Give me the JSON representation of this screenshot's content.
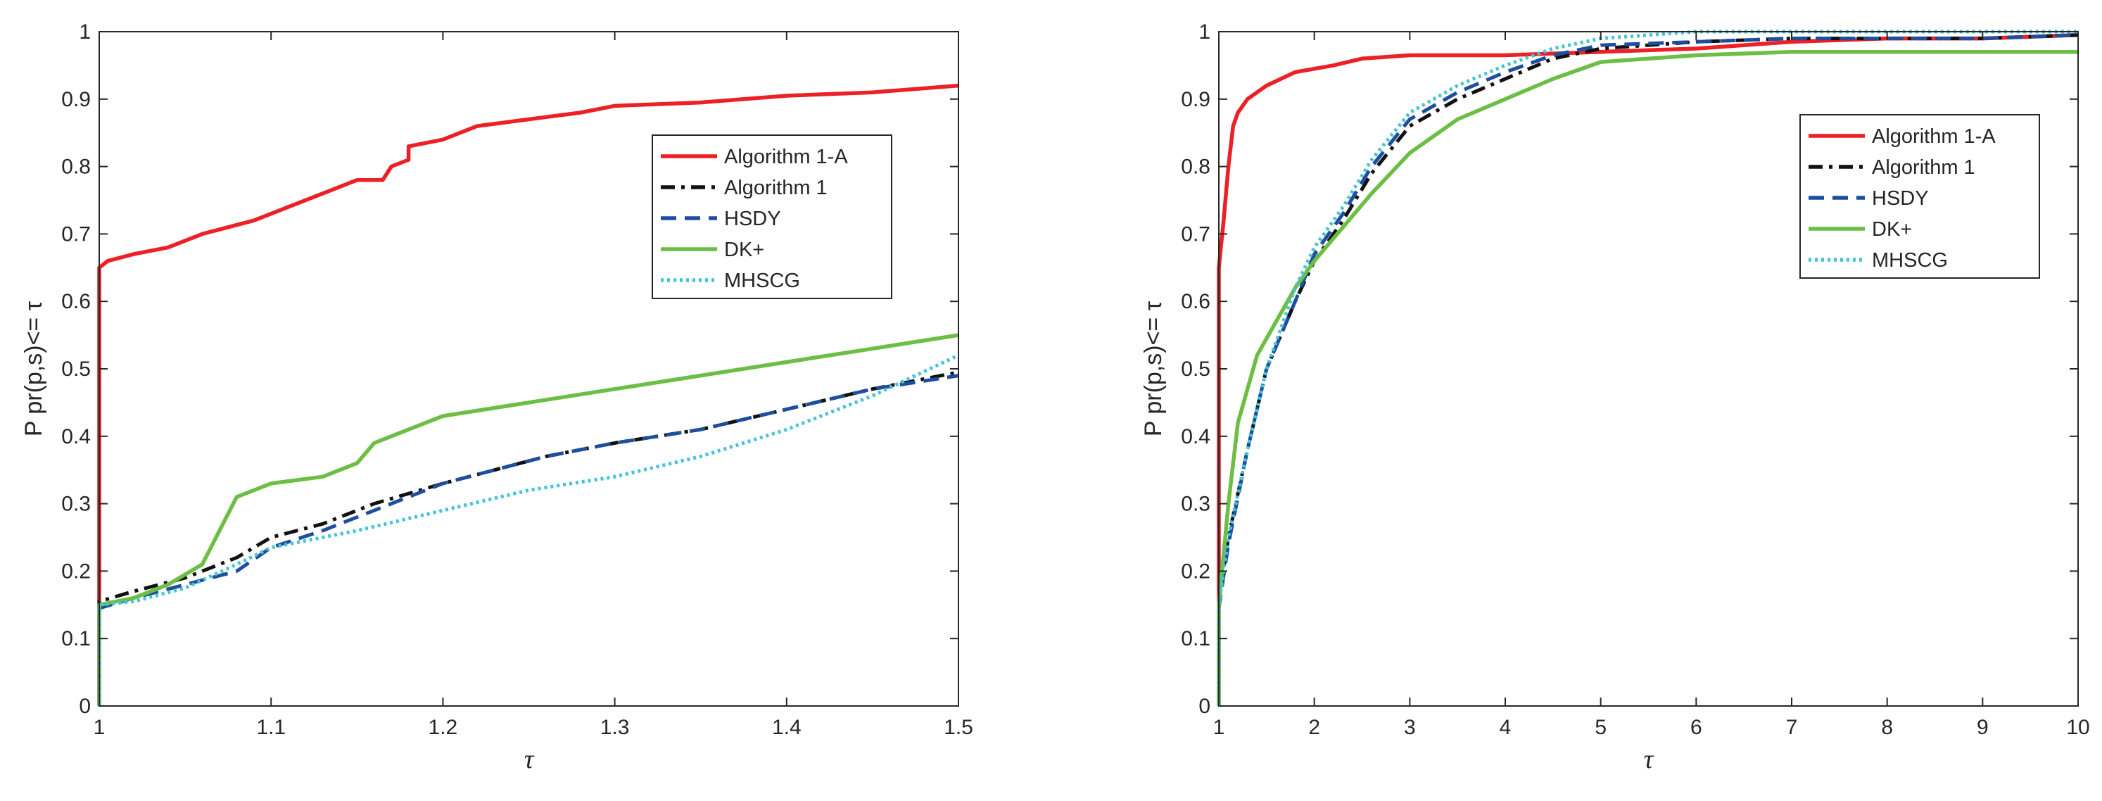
{
  "colors": {
    "algorithm_1a": "#ec2026",
    "algorithm_1": "#111111",
    "hsdy": "#1d4f9e",
    "dk_plus": "#6cbe45",
    "mhscg": "#45c3d9",
    "axis": "#262626"
  },
  "chart_data": [
    {
      "type": "line",
      "title": "",
      "xlabel": "τ",
      "ylabel": "P pr(p,s)<= τ",
      "xlim": [
        1,
        1.5
      ],
      "ylim": [
        0,
        1
      ],
      "xticks": [
        1,
        1.1,
        1.2,
        1.3,
        1.4,
        1.5
      ],
      "xtick_labels": [
        "1",
        "1.1",
        "1.2",
        "1.3",
        "1.4",
        "1.5"
      ],
      "yticks": [
        0,
        0.1,
        0.2,
        0.3,
        0.4,
        0.5,
        0.6,
        0.7,
        0.8,
        0.9,
        1
      ],
      "ytick_labels": [
        "0",
        "0.1",
        "0.2",
        "0.3",
        "0.4",
        "0.5",
        "0.6",
        "0.7",
        "0.8",
        "0.9",
        "1"
      ],
      "legend_position": "upper-middle-right",
      "series": [
        {
          "name": "Algorithm 1-A",
          "key": "algorithm_1a",
          "style": "solid",
          "x": [
            1,
            1,
            1.005,
            1.02,
            1.04,
            1.06,
            1.075,
            1.09,
            1.11,
            1.13,
            1.15,
            1.165,
            1.17,
            1.18,
            1.18,
            1.2,
            1.22,
            1.25,
            1.28,
            1.3,
            1.35,
            1.4,
            1.45,
            1.5
          ],
          "y": [
            0,
            0.65,
            0.66,
            0.67,
            0.68,
            0.7,
            0.71,
            0.72,
            0.74,
            0.76,
            0.78,
            0.78,
            0.8,
            0.81,
            0.83,
            0.84,
            0.86,
            0.87,
            0.88,
            0.89,
            0.895,
            0.905,
            0.91,
            0.92
          ]
        },
        {
          "name": "Algorithm 1",
          "key": "algorithm_1",
          "style": "dashdot",
          "x": [
            1,
            1,
            1.02,
            1.05,
            1.08,
            1.1,
            1.13,
            1.16,
            1.2,
            1.23,
            1.26,
            1.3,
            1.35,
            1.4,
            1.45,
            1.5
          ],
          "y": [
            0,
            0.155,
            0.17,
            0.19,
            0.22,
            0.25,
            0.27,
            0.3,
            0.33,
            0.35,
            0.37,
            0.39,
            0.41,
            0.44,
            0.47,
            0.495
          ]
        },
        {
          "name": "HSDY",
          "key": "hsdy",
          "style": "dashed",
          "x": [
            1,
            1,
            1.02,
            1.05,
            1.08,
            1.1,
            1.13,
            1.16,
            1.2,
            1.23,
            1.26,
            1.3,
            1.35,
            1.4,
            1.45,
            1.5
          ],
          "y": [
            0,
            0.145,
            0.16,
            0.18,
            0.2,
            0.235,
            0.26,
            0.29,
            0.33,
            0.35,
            0.37,
            0.39,
            0.41,
            0.44,
            0.47,
            0.49
          ]
        },
        {
          "name": "DK+",
          "key": "dk_plus",
          "style": "solid",
          "x": [
            1,
            1,
            1.02,
            1.04,
            1.06,
            1.07,
            1.08,
            1.1,
            1.13,
            1.15,
            1.16,
            1.18,
            1.2,
            1.25,
            1.3,
            1.35,
            1.4,
            1.45,
            1.5
          ],
          "y": [
            0,
            0.15,
            0.16,
            0.18,
            0.21,
            0.26,
            0.31,
            0.33,
            0.34,
            0.36,
            0.39,
            0.41,
            0.43,
            0.45,
            0.47,
            0.49,
            0.51,
            0.53,
            0.55
          ]
        },
        {
          "name": "MHSCG",
          "key": "mhscg",
          "style": "dotted",
          "x": [
            1,
            1,
            1.02,
            1.05,
            1.08,
            1.1,
            1.15,
            1.2,
            1.25,
            1.3,
            1.35,
            1.4,
            1.45,
            1.5
          ],
          "y": [
            0,
            0.15,
            0.155,
            0.175,
            0.21,
            0.235,
            0.26,
            0.29,
            0.32,
            0.34,
            0.37,
            0.41,
            0.46,
            0.52
          ]
        }
      ]
    },
    {
      "type": "line",
      "title": "",
      "xlabel": "τ",
      "ylabel": "P pr(p,s)<= τ",
      "xlim": [
        1,
        10
      ],
      "ylim": [
        0,
        1
      ],
      "xticks": [
        1,
        2,
        3,
        4,
        5,
        6,
        7,
        8,
        9,
        10
      ],
      "xtick_labels": [
        "1",
        "2",
        "3",
        "4",
        "5",
        "6",
        "7",
        "8",
        "9",
        "10"
      ],
      "yticks": [
        0,
        0.1,
        0.2,
        0.3,
        0.4,
        0.5,
        0.6,
        0.7,
        0.8,
        0.9,
        1
      ],
      "ytick_labels": [
        "0",
        "0.1",
        "0.2",
        "0.3",
        "0.4",
        "0.5",
        "0.6",
        "0.7",
        "0.8",
        "0.9",
        "1"
      ],
      "legend_position": "upper-right",
      "series": [
        {
          "name": "Algorithm 1-A",
          "key": "algorithm_1a",
          "style": "solid",
          "x": [
            1,
            1,
            1.05,
            1.1,
            1.15,
            1.2,
            1.3,
            1.5,
            1.8,
            2.2,
            2.5,
            3,
            4,
            5,
            6,
            7,
            8,
            9,
            10
          ],
          "y": [
            0,
            0.65,
            0.72,
            0.8,
            0.86,
            0.88,
            0.9,
            0.92,
            0.94,
            0.95,
            0.96,
            0.965,
            0.965,
            0.97,
            0.975,
            0.985,
            0.99,
            0.99,
            0.995
          ]
        },
        {
          "name": "Algorithm 1",
          "key": "algorithm_1",
          "style": "dashdot",
          "x": [
            1,
            1,
            1.1,
            1.3,
            1.5,
            1.8,
            2,
            2.3,
            2.6,
            3,
            3.5,
            4,
            4.5,
            5,
            6,
            7,
            8,
            9,
            10
          ],
          "y": [
            0,
            0.155,
            0.25,
            0.38,
            0.5,
            0.6,
            0.66,
            0.72,
            0.79,
            0.86,
            0.9,
            0.93,
            0.96,
            0.975,
            0.985,
            0.99,
            0.99,
            0.99,
            0.995
          ]
        },
        {
          "name": "HSDY",
          "key": "hsdy",
          "style": "dashed",
          "x": [
            1,
            1,
            1.1,
            1.3,
            1.5,
            1.8,
            2,
            2.3,
            2.6,
            3,
            3.5,
            4,
            4.5,
            5,
            6,
            7,
            8,
            9,
            10
          ],
          "y": [
            0,
            0.145,
            0.24,
            0.38,
            0.5,
            0.6,
            0.67,
            0.73,
            0.8,
            0.87,
            0.91,
            0.94,
            0.965,
            0.98,
            0.985,
            0.99,
            0.99,
            0.99,
            0.995
          ]
        },
        {
          "name": "DK+",
          "key": "dk_plus",
          "style": "solid",
          "x": [
            1,
            1,
            1.1,
            1.2,
            1.4,
            1.6,
            1.8,
            2,
            2.3,
            2.6,
            3,
            3.5,
            4,
            4.5,
            5,
            6,
            7,
            8,
            9,
            10
          ],
          "y": [
            0,
            0.15,
            0.3,
            0.42,
            0.52,
            0.57,
            0.62,
            0.66,
            0.71,
            0.76,
            0.82,
            0.87,
            0.9,
            0.93,
            0.955,
            0.965,
            0.97,
            0.97,
            0.97,
            0.97
          ]
        },
        {
          "name": "MHSCG",
          "key": "mhscg",
          "style": "dotted",
          "x": [
            1,
            1,
            1.1,
            1.3,
            1.5,
            1.8,
            2,
            2.3,
            2.6,
            3,
            3.5,
            4,
            4.5,
            5,
            5.5,
            6,
            7,
            8,
            10
          ],
          "y": [
            0,
            0.15,
            0.25,
            0.38,
            0.5,
            0.62,
            0.68,
            0.74,
            0.81,
            0.88,
            0.92,
            0.95,
            0.975,
            0.99,
            0.995,
            1.0,
            1.0,
            1.0,
            1.0
          ]
        }
      ]
    }
  ]
}
